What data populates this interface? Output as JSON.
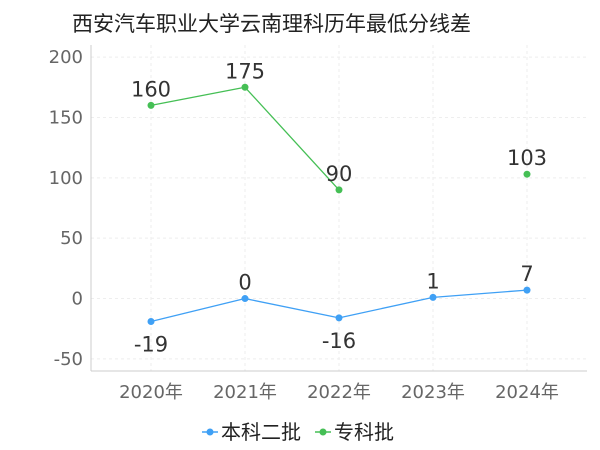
{
  "chart_data": {
    "type": "line",
    "title": "西安汽车职业大学云南理科历年最低分线差",
    "categories": [
      "2020年",
      "2021年",
      "2022年",
      "2023年",
      "2024年"
    ],
    "ylim": [
      -60,
      210
    ],
    "yticks": [
      -50,
      0,
      50,
      100,
      150,
      200
    ],
    "series": [
      {
        "name": "本科二批",
        "color": "#3fa0f5",
        "values": [
          -19,
          0,
          -16,
          1,
          7
        ]
      },
      {
        "name": "专科批",
        "color": "#45bf55",
        "values": [
          160,
          175,
          90,
          null,
          103
        ]
      }
    ],
    "legend_position": "bottom-center"
  }
}
